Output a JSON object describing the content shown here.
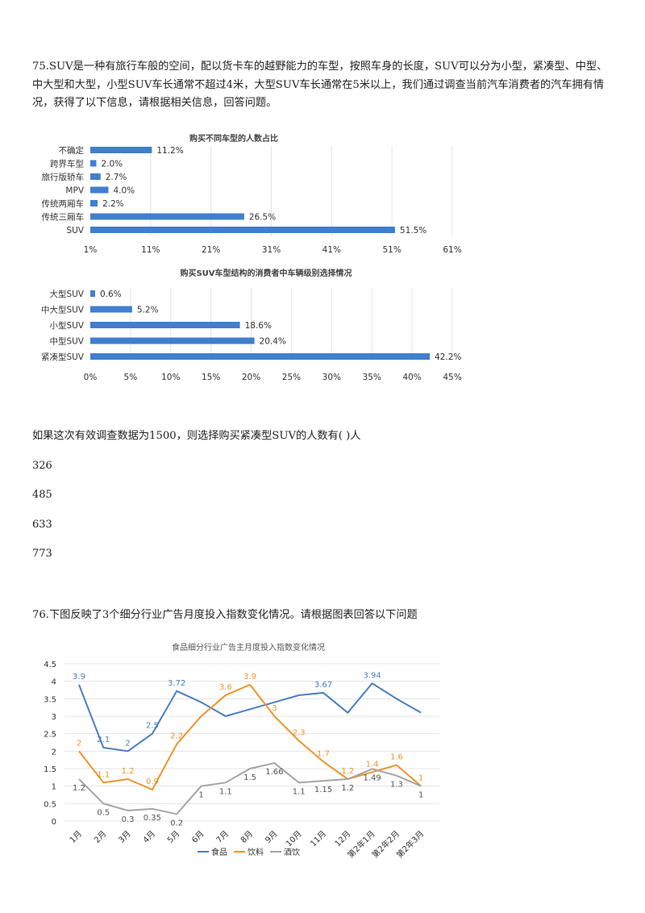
{
  "q75": {
    "text": "75.SUV是一种有旅行车般的空间，配以货卡车的越野能力的车型，按照车身的长度，SUV可以分为小型，紧凑型、中型、中大型和大型，小型SUV车长通常不超过4米，大型SUV车长通常在5米以上，我们通过调查当前汽车消费者的汽车拥有情况，获得了以下信息，请根据相关信息，回答问题。",
    "stem": "如果这次有效调查数据为1500，则选择购买紧凑型SUV的人数有(    )人",
    "options": [
      "326",
      "485",
      "633",
      "773"
    ]
  },
  "q76": {
    "text": "76.下图反映了3个细分行业广告月度投入指数变化情况。请根据图表回答以下问题"
  },
  "chart_data": [
    {
      "type": "bar",
      "orientation": "horizontal",
      "title": "购买不同车型的人数占比",
      "categories": [
        "不确定",
        "跨界车型",
        "旅行版轿车",
        "MPV",
        "传统两厢车",
        "传统三厢车",
        "SUV"
      ],
      "values": [
        11.2,
        2.0,
        2.7,
        4.0,
        2.2,
        26.5,
        51.5
      ],
      "value_labels": [
        "11.2%",
        "2.0%",
        "2.7%",
        "4.0%",
        "2.2%",
        "26.5%",
        "51.5%"
      ],
      "xlim": [
        1,
        61
      ],
      "ticks": [
        "1%",
        "11%",
        "21%",
        "31%",
        "41%",
        "51%",
        "61%"
      ],
      "color": "#3f7fcf"
    },
    {
      "type": "bar",
      "orientation": "horizontal",
      "title": "购买SUV车型结构的消费者中车辆级别选择情况",
      "categories": [
        "大型SUV",
        "中大型SUV",
        "小型SUV",
        "中型SUV",
        "紧凑型SUV"
      ],
      "values": [
        0.6,
        5.2,
        18.6,
        20.4,
        42.2
      ],
      "value_labels": [
        "0.6%",
        "5.2%",
        "18.6%",
        "20.4%",
        "42.2%"
      ],
      "xlim": [
        0,
        45
      ],
      "ticks": [
        "0%",
        "5%",
        "10%",
        "15%",
        "20%",
        "25%",
        "30%",
        "35%",
        "40%",
        "45%"
      ],
      "color": "#3f7fcf"
    },
    {
      "type": "line",
      "title": "食品细分行业广告主月度投入指数变化情况",
      "categories": [
        "1月",
        "2月",
        "3月",
        "4月",
        "5月",
        "6月",
        "7月",
        "8月",
        "9月",
        "10月",
        "11月",
        "12月",
        "第2年1月",
        "第2年2月",
        "第2年3月"
      ],
      "ylim": [
        0,
        4.5
      ],
      "yticks": [
        "0",
        "0.5",
        "1",
        "1.5",
        "2",
        "2.5",
        "3",
        "3.5",
        "4",
        "4.5"
      ],
      "series": [
        {
          "name": "食品",
          "color": "#4a7fc1",
          "values": [
            3.9,
            2.1,
            2.0,
            2.5,
            3.72,
            3.4,
            3.0,
            3.2,
            3.4,
            3.6,
            3.67,
            3.1,
            3.94,
            3.5,
            3.1
          ],
          "labels": [
            "3.9",
            "2.1",
            "2",
            "2.5",
            "3.72",
            "",
            "",
            "",
            "",
            "",
            "3.67",
            "",
            "3.94",
            "",
            ""
          ]
        },
        {
          "name": "饮料",
          "color": "#f0932b",
          "values": [
            2.0,
            1.1,
            1.2,
            0.9,
            2.2,
            3.0,
            3.6,
            3.9,
            3.0,
            2.3,
            1.7,
            1.2,
            1.4,
            1.6,
            1.0
          ],
          "labels": [
            "2",
            "1.1",
            "1.2",
            "0.9",
            "2.2",
            "",
            "3.6",
            "3.9",
            "3",
            "2.3",
            "1.7",
            "1.2",
            "1.4",
            "1.6",
            "1"
          ]
        },
        {
          "name": "酒饮",
          "color": "#a5a5a5",
          "values": [
            1.2,
            0.5,
            0.3,
            0.35,
            0.2,
            1.0,
            1.1,
            1.5,
            1.66,
            1.1,
            1.15,
            1.2,
            1.49,
            1.3,
            1.0
          ],
          "labels": [
            "1.2",
            "0.5",
            "0.3",
            "0.35",
            "0.2",
            "1",
            "1.1",
            "1.5",
            "1.66",
            "1.1",
            "1.15",
            "1.2",
            "1.49",
            "1.3",
            "1"
          ]
        }
      ],
      "legend_position": "bottom"
    }
  ]
}
